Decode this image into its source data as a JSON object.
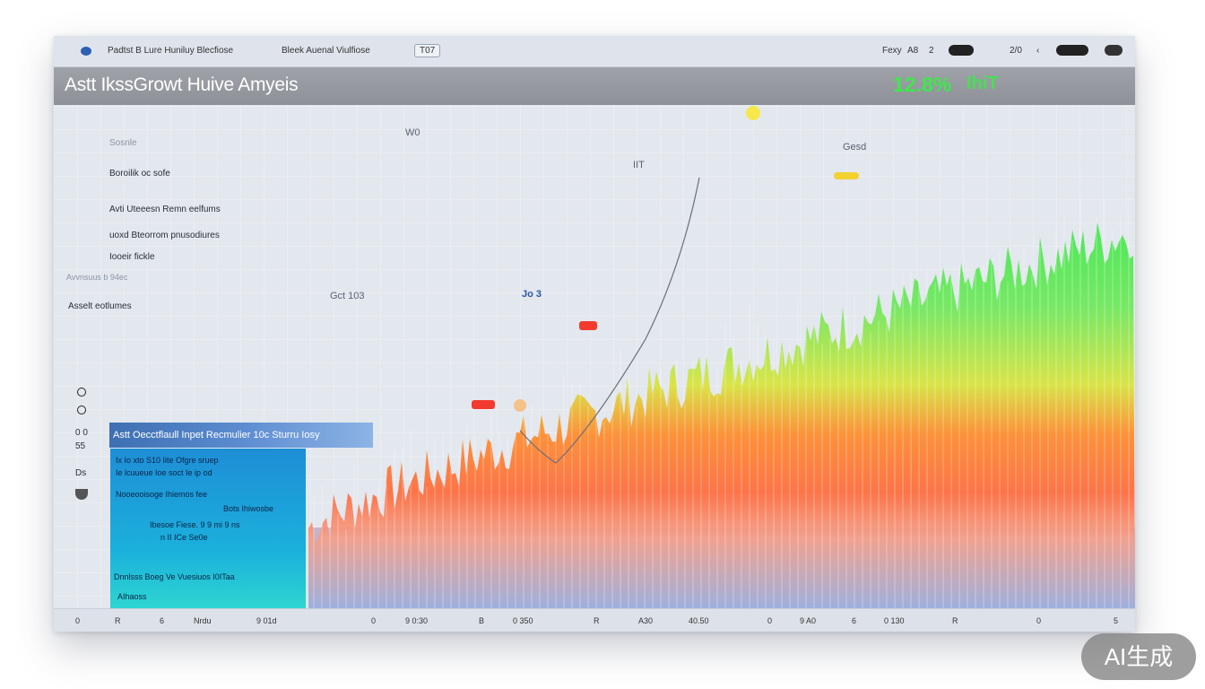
{
  "topbar": {
    "left_a": "Padtst B Lure Huniluy Blecfiose",
    "left_b": "Bleek Auenal Viulfiose",
    "left_box": "T07",
    "right_a": "Fexy",
    "right_b": "A8",
    "right_c": "2",
    "right_d": "2/0",
    "right_e": "‹"
  },
  "header": {
    "title": "Astt IkssGrowt Huive Amyeis",
    "metric": "12.8%",
    "metric_suffix": "IhiT"
  },
  "sidebar": {
    "items": [
      "Sosnle",
      "Boroilik oc sofe",
      "Avti Uteeesn Remn eelfums",
      "uoxd Bteorrom pnusodiures",
      "Iooeir fickle",
      "Avvnsuus b 94ec",
      "Asselt eotlumes"
    ],
    "markers": [
      "0 0",
      "55",
      "Ds"
    ]
  },
  "legend": {
    "title": "Astt Oecctflaull Inpet Recmulier 10c Sturru Iosy",
    "lines": [
      "Ix Io xto  S10  Iite   Ofgre sruep",
      "Ie lcuueue  Ioe soct   Ie ip od",
      "Nooeooisoge  Ihiemos fee",
      "Bots Ihiwosbe",
      "Ibesoe  Fiese.   9 9 mi   9 ns",
      "n  II  ICe Se0e",
      "Dnnlsss Boeg Ve Vuesiuos  I0ITaa",
      "AIhaoss"
    ]
  },
  "annotations": {
    "a1": "Gct 103",
    "a2": "Jo 3",
    "a3": "W0",
    "a4": "Gesd",
    "a5": "IIT"
  },
  "xaxis": {
    "ticks": [
      "0",
      "R",
      "6",
      "Nrdu",
      "9 01d",
      "0",
      "9 0:30",
      "B",
      "0 350",
      "R",
      "A30",
      "40.50",
      "0",
      "9 A0",
      "6",
      "0 130",
      "R",
      "0",
      "5"
    ]
  },
  "colors": {
    "green": "#3ee84a",
    "yellow": "#f2d22e",
    "orange": "#ff7a25",
    "red": "#f23b2e",
    "blue_fill": "#8ea4d6",
    "title_bg": "#979aa1"
  },
  "watermark": "AI生成"
}
